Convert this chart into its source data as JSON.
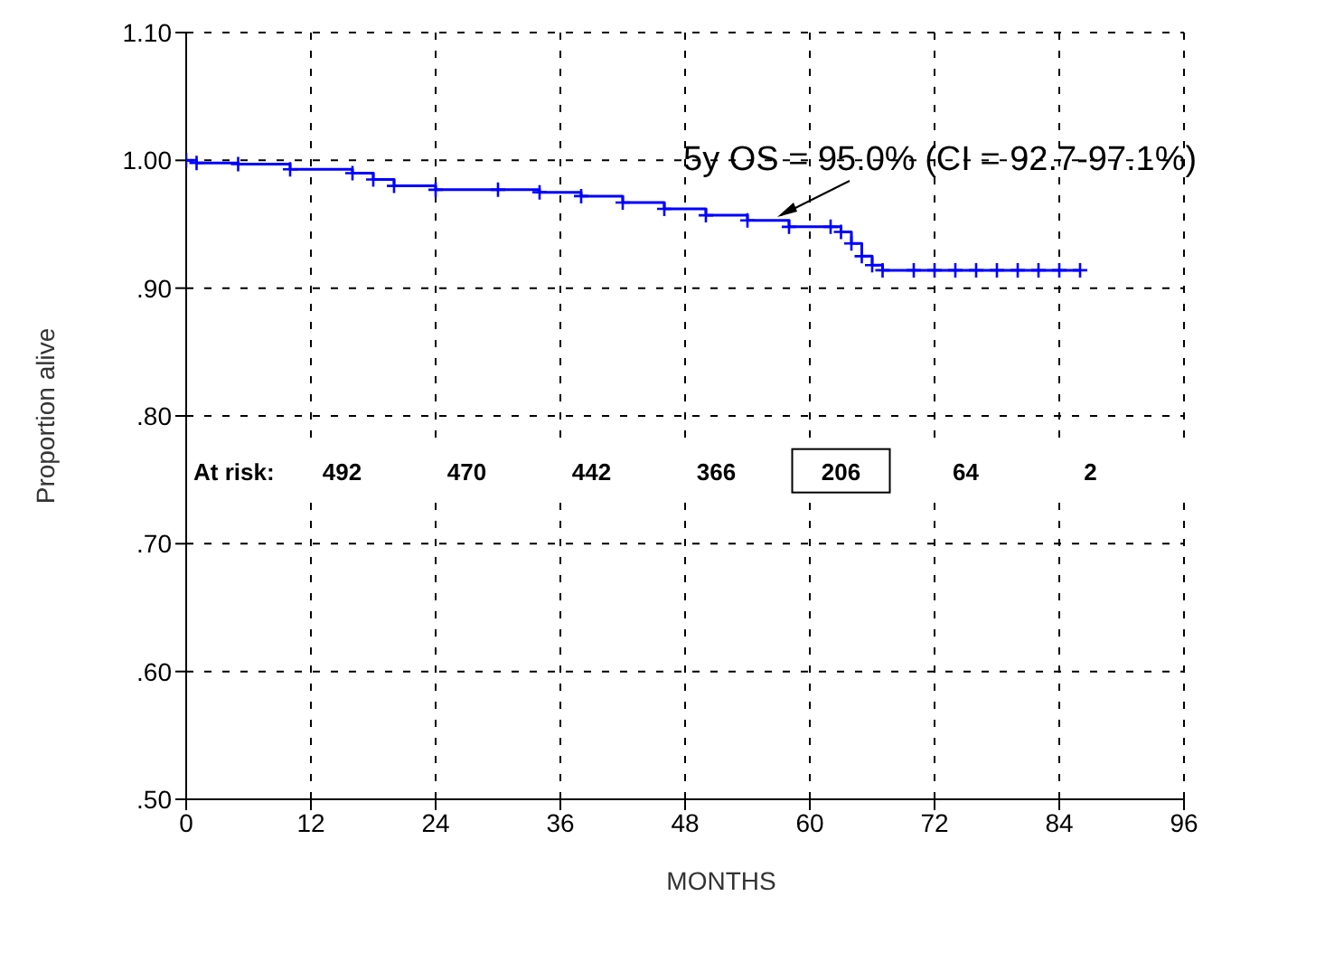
{
  "chart_data": {
    "type": "step",
    "xlabel": "MONTHS",
    "ylabel": "Proportion alive",
    "x": [
      0,
      1,
      5,
      10,
      16,
      18,
      20,
      24,
      30,
      34,
      38,
      42,
      46,
      50,
      54,
      58,
      62,
      63,
      64,
      65,
      66,
      67,
      70,
      72,
      74,
      76,
      78,
      80,
      82,
      84,
      86
    ],
    "series": [
      {
        "color": "#0000ff",
        "values": [
          1.0,
          0.998,
          0.997,
          0.993,
          0.99,
          0.985,
          0.98,
          0.977,
          0.977,
          0.975,
          0.972,
          0.967,
          0.962,
          0.957,
          0.953,
          0.948,
          0.948,
          0.944,
          0.935,
          0.925,
          0.918,
          0.914,
          0.914,
          0.914,
          0.914,
          0.914,
          0.914,
          0.914,
          0.914,
          0.914,
          0.914
        ]
      }
    ],
    "xlim": [
      0,
      96
    ],
    "xticks": [
      0,
      12,
      24,
      36,
      48,
      60,
      72,
      84,
      96
    ],
    "ylim": [
      0.5,
      1.1
    ],
    "yticks": [
      {
        "value": 0.5,
        "label": ".50"
      },
      {
        "value": 0.6,
        "label": ".60"
      },
      {
        "value": 0.7,
        "label": ".70"
      },
      {
        "value": 0.8,
        "label": ".80"
      },
      {
        "value": 0.9,
        "label": ".90"
      },
      {
        "value": 1.0,
        "label": "1.00"
      },
      {
        "value": 1.1,
        "label": "1.10"
      }
    ],
    "grid": true,
    "marker": "cross",
    "line_style": "solid",
    "annotations": [
      {
        "text": "5y OS = 95.0% (CI = 92.7-97.1%)",
        "x": 60,
        "y": 0.95
      },
      "At risk:",
      "492",
      "470",
      "442",
      "366",
      "206",
      "64",
      "2"
    ]
  }
}
